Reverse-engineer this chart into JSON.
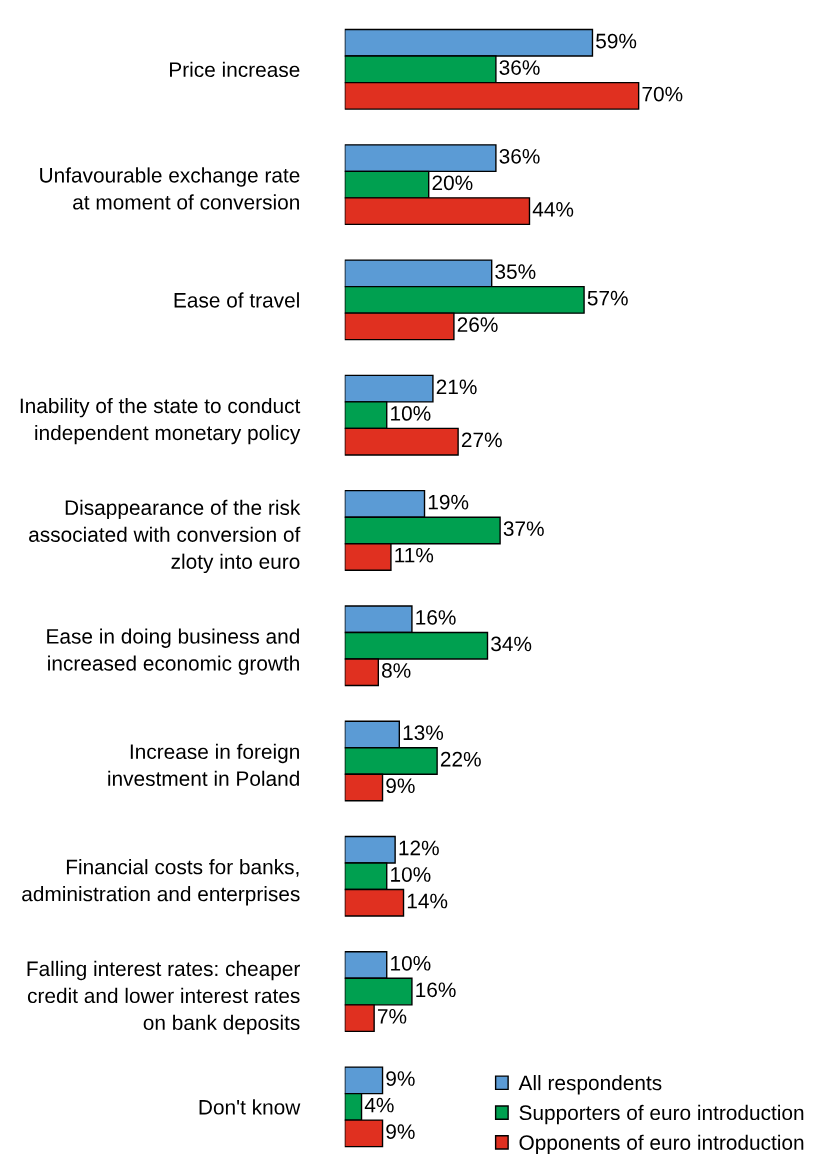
{
  "chart_data": {
    "type": "bar",
    "orientation": "horizontal",
    "tick_labels": "y",
    "legend": "bottom right",
    "grid": false,
    "categories": [
      "Price increase",
      "Unfavourable exchange rate\nat moment of conversion",
      "Ease of travel",
      "Inability of the state to conduct\nindependent monetary policy",
      "Disappearance of the risk\nassociated with conversion of\nzloty into euro",
      "Ease in doing business and\nincreased economic growth",
      "Increase in foreign\ninvestment in Poland",
      "Financial costs for banks,\nadministration and enterprises",
      "Falling interest rates: cheaper\ncredit and lower interest rates\non bank deposits",
      "Don't know"
    ],
    "series": [
      {
        "name": "All respondents",
        "color": "#5b9bd5",
        "values": [
          59,
          36,
          35,
          21,
          19,
          16,
          13,
          12,
          10,
          9
        ],
        "value_labels": [
          "59%",
          "36%",
          "35%",
          "21%",
          "19%",
          "16%",
          "13%",
          "12%",
          "10%",
          "9%"
        ]
      },
      {
        "name": "Supporters of euro introduction",
        "color": "#00a050",
        "values": [
          36,
          20,
          57,
          10,
          37,
          34,
          22,
          10,
          16,
          4
        ],
        "value_labels": [
          "36%",
          "20%",
          "57%",
          "10%",
          "37%",
          "34%",
          "22%",
          "10%",
          "16%",
          "4%"
        ]
      },
      {
        "name": "Opponents of euro introduction",
        "color": "#e03020",
        "values": [
          70,
          44,
          26,
          27,
          11,
          8,
          9,
          14,
          7,
          9
        ],
        "value_labels": [
          "70%",
          "44%",
          "26%",
          "27%",
          "11%",
          "8%",
          "9%",
          "14%",
          "7%",
          "9%"
        ]
      }
    ]
  }
}
